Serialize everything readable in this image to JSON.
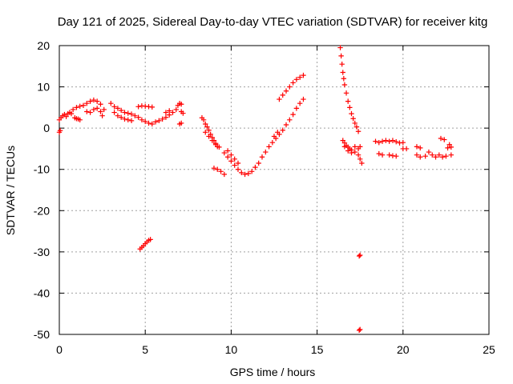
{
  "chart_data": {
    "type": "scatter",
    "title": "Day 121 of 2025, Sidereal Day-to-day VTEC variation (SDTVAR) for receiver kitg",
    "xlabel": "GPS time / hours",
    "ylabel": "SDTVAR / TECUs",
    "xlim": [
      0,
      25
    ],
    "ylim": [
      -50,
      20
    ],
    "xticks": [
      0,
      5,
      10,
      15,
      20,
      25
    ],
    "yticks": [
      -50,
      -40,
      -30,
      -20,
      -10,
      0,
      10,
      20
    ],
    "grid": true,
    "marker": "+",
    "color": "#ff0000",
    "segments": [
      {
        "name": "start",
        "points": [
          [
            0.0,
            -1.0
          ],
          [
            0.05,
            -0.6
          ],
          [
            0.0,
            2.0
          ],
          [
            0.1,
            2.5
          ],
          [
            0.2,
            3.0
          ],
          [
            0.3,
            3.3
          ],
          [
            0.4,
            2.8
          ],
          [
            0.5,
            3.5
          ],
          [
            0.6,
            3.8
          ],
          [
            0.7,
            3.5
          ]
        ]
      },
      {
        "name": "early-low",
        "points": [
          [
            0.9,
            2.5
          ],
          [
            1.0,
            2.3
          ],
          [
            1.1,
            2.2
          ],
          [
            1.2,
            2.0
          ]
        ]
      },
      {
        "name": "early-hump",
        "points": [
          [
            0.8,
            4.5
          ],
          [
            1.0,
            5.0
          ],
          [
            1.2,
            5.3
          ],
          [
            1.4,
            5.5
          ],
          [
            1.6,
            6.0
          ],
          [
            1.8,
            6.5
          ],
          [
            2.0,
            6.8
          ],
          [
            2.2,
            6.5
          ],
          [
            2.4,
            5.8
          ],
          [
            2.6,
            4.5
          ],
          [
            1.6,
            4.0
          ],
          [
            1.8,
            3.8
          ],
          [
            2.0,
            4.5
          ],
          [
            2.2,
            4.8
          ],
          [
            2.4,
            4.0
          ],
          [
            2.5,
            3.0
          ]
        ]
      },
      {
        "name": "plateau",
        "points": [
          [
            3.0,
            6.0
          ],
          [
            3.2,
            5.2
          ],
          [
            3.4,
            4.8
          ],
          [
            3.6,
            4.3
          ],
          [
            3.8,
            3.8
          ],
          [
            4.0,
            3.6
          ],
          [
            4.2,
            3.4
          ],
          [
            4.4,
            3.0
          ],
          [
            4.6,
            2.6
          ],
          [
            4.8,
            2.0
          ],
          [
            5.0,
            1.6
          ],
          [
            5.2,
            1.2
          ],
          [
            3.2,
            3.8
          ],
          [
            3.4,
            3.0
          ],
          [
            3.6,
            2.6
          ],
          [
            3.8,
            2.2
          ],
          [
            4.0,
            2.0
          ],
          [
            4.2,
            1.8
          ]
        ]
      },
      {
        "name": "bump-5",
        "points": [
          [
            4.6,
            5.2
          ],
          [
            4.8,
            5.4
          ],
          [
            5.0,
            5.3
          ],
          [
            5.2,
            5.2
          ],
          [
            5.4,
            5.1
          ]
        ]
      },
      {
        "name": "rise-6",
        "points": [
          [
            5.4,
            1.0
          ],
          [
            5.6,
            1.5
          ],
          [
            5.8,
            1.8
          ],
          [
            6.0,
            2.2
          ],
          [
            6.2,
            2.6
          ],
          [
            6.4,
            3.2
          ],
          [
            6.6,
            3.8
          ],
          [
            6.8,
            4.5
          ],
          [
            6.2,
            3.8
          ],
          [
            6.4,
            4.2
          ]
        ]
      },
      {
        "name": "near-7",
        "points": [
          [
            6.9,
            5.5
          ],
          [
            7.0,
            6.0
          ],
          [
            7.1,
            5.8
          ],
          [
            7.1,
            4.0
          ],
          [
            7.2,
            3.6
          ],
          [
            7.0,
            1.0
          ],
          [
            7.1,
            1.2
          ]
        ]
      },
      {
        "name": "dip-outlier-5",
        "points": [
          [
            4.7,
            -29.3
          ],
          [
            4.8,
            -28.9
          ],
          [
            4.9,
            -28.5
          ],
          [
            5.0,
            -28.0
          ],
          [
            5.1,
            -27.6
          ],
          [
            5.2,
            -27.2
          ],
          [
            5.3,
            -27.0
          ]
        ]
      },
      {
        "name": "fall-8",
        "points": [
          [
            8.3,
            2.5
          ],
          [
            8.4,
            2.0
          ],
          [
            8.5,
            1.0
          ],
          [
            8.6,
            0.3
          ],
          [
            8.7,
            -0.5
          ],
          [
            8.8,
            -1.5
          ],
          [
            8.9,
            -2.3
          ],
          [
            9.0,
            -3.0
          ],
          [
            9.1,
            -3.7
          ],
          [
            9.2,
            -4.5
          ],
          [
            8.5,
            -1.0
          ],
          [
            8.7,
            -2.0
          ],
          [
            8.9,
            -3.0
          ],
          [
            9.1,
            -4.0
          ],
          [
            9.3,
            -4.6
          ]
        ]
      },
      {
        "name": "fall-9",
        "points": [
          [
            9.6,
            -6.0
          ],
          [
            9.8,
            -7.0
          ],
          [
            10.0,
            -8.0
          ],
          [
            10.2,
            -9.0
          ],
          [
            10.4,
            -10.0
          ],
          [
            10.6,
            -10.8
          ],
          [
            10.8,
            -11.2
          ],
          [
            11.0,
            -11.0
          ],
          [
            11.2,
            -10.5
          ],
          [
            11.4,
            -9.5
          ],
          [
            11.6,
            -8.5
          ],
          [
            11.8,
            -7.0
          ],
          [
            12.0,
            -5.8
          ],
          [
            9.8,
            -5.5
          ],
          [
            10.0,
            -6.5
          ],
          [
            10.2,
            -7.5
          ],
          [
            10.4,
            -8.5
          ]
        ]
      },
      {
        "name": "low-9",
        "points": [
          [
            9.0,
            -9.7
          ],
          [
            9.2,
            -10.0
          ],
          [
            9.4,
            -10.5
          ],
          [
            9.6,
            -11.2
          ]
        ]
      },
      {
        "name": "rise-12",
        "points": [
          [
            12.2,
            -4.5
          ],
          [
            12.4,
            -3.5
          ],
          [
            12.6,
            -2.5
          ],
          [
            12.8,
            -1.5
          ],
          [
            13.0,
            -0.5
          ],
          [
            13.2,
            0.8
          ],
          [
            13.4,
            2.0
          ],
          [
            13.6,
            3.3
          ],
          [
            13.8,
            4.8
          ],
          [
            14.0,
            6.0
          ],
          [
            14.2,
            7.0
          ],
          [
            12.5,
            -2.0
          ],
          [
            12.7,
            -1.0
          ]
        ]
      },
      {
        "name": "rise-13",
        "points": [
          [
            12.8,
            7.0
          ],
          [
            13.0,
            8.0
          ],
          [
            13.2,
            9.0
          ],
          [
            13.4,
            10.0
          ],
          [
            13.6,
            11.0
          ],
          [
            13.8,
            11.8
          ],
          [
            14.0,
            12.3
          ],
          [
            14.2,
            12.8
          ]
        ]
      },
      {
        "name": "decay-16",
        "points": [
          [
            16.35,
            19.5
          ],
          [
            16.4,
            17.5
          ],
          [
            16.45,
            15.5
          ],
          [
            16.5,
            13.5
          ],
          [
            16.55,
            12.0
          ],
          [
            16.6,
            10.5
          ],
          [
            16.7,
            8.5
          ],
          [
            16.8,
            6.5
          ],
          [
            16.9,
            5.0
          ],
          [
            17.0,
            3.5
          ],
          [
            17.1,
            2.3
          ],
          [
            17.2,
            1.2
          ],
          [
            17.3,
            0.3
          ],
          [
            17.4,
            -0.8
          ]
        ]
      },
      {
        "name": "cluster-17",
        "points": [
          [
            16.5,
            -3.0
          ],
          [
            16.6,
            -3.6
          ],
          [
            16.7,
            -4.2
          ],
          [
            16.8,
            -4.6
          ],
          [
            16.9,
            -5.0
          ],
          [
            17.0,
            -5.3
          ],
          [
            17.2,
            -5.8
          ],
          [
            17.4,
            -6.5
          ],
          [
            17.5,
            -7.5
          ],
          [
            17.6,
            -8.5
          ],
          [
            16.6,
            -4.5
          ],
          [
            16.8,
            -5.5
          ],
          [
            17.0,
            -6.0
          ],
          [
            17.2,
            -4.5
          ],
          [
            17.4,
            -5.0
          ],
          [
            17.5,
            -4.5
          ]
        ]
      },
      {
        "name": "outlier-31",
        "points": [
          [
            17.45,
            -31.0
          ],
          [
            17.5,
            -30.8
          ]
        ]
      },
      {
        "name": "outlier-49",
        "points": [
          [
            17.45,
            -49.0
          ],
          [
            17.5,
            -48.8
          ]
        ]
      },
      {
        "name": "tail-18",
        "points": [
          [
            18.4,
            -3.2
          ],
          [
            18.6,
            -3.5
          ],
          [
            18.8,
            -3.2
          ],
          [
            19.0,
            -3.0
          ],
          [
            19.2,
            -3.2
          ],
          [
            19.4,
            -3.0
          ],
          [
            19.6,
            -3.3
          ],
          [
            19.8,
            -3.6
          ],
          [
            18.6,
            -6.2
          ],
          [
            18.8,
            -6.5
          ],
          [
            19.2,
            -6.5
          ],
          [
            19.4,
            -6.7
          ],
          [
            19.6,
            -6.8
          ]
        ]
      },
      {
        "name": "tail-20",
        "points": [
          [
            20.0,
            -3.5
          ],
          [
            20.0,
            -5.0
          ],
          [
            20.2,
            -5.0
          ]
        ]
      },
      {
        "name": "tail-21",
        "points": [
          [
            20.8,
            -4.5
          ],
          [
            21.0,
            -4.8
          ],
          [
            20.8,
            -6.5
          ],
          [
            21.0,
            -7.0
          ],
          [
            21.3,
            -6.8
          ],
          [
            21.5,
            -5.8
          ],
          [
            21.7,
            -6.5
          ],
          [
            21.9,
            -7.0
          ],
          [
            22.1,
            -6.5
          ],
          [
            22.3,
            -7.0
          ],
          [
            22.5,
            -6.8
          ],
          [
            22.2,
            -2.5
          ],
          [
            22.4,
            -2.8
          ],
          [
            22.6,
            -4.8
          ],
          [
            22.7,
            -4.0
          ],
          [
            22.8,
            -4.6
          ],
          [
            22.8,
            -6.5
          ]
        ]
      }
    ]
  }
}
